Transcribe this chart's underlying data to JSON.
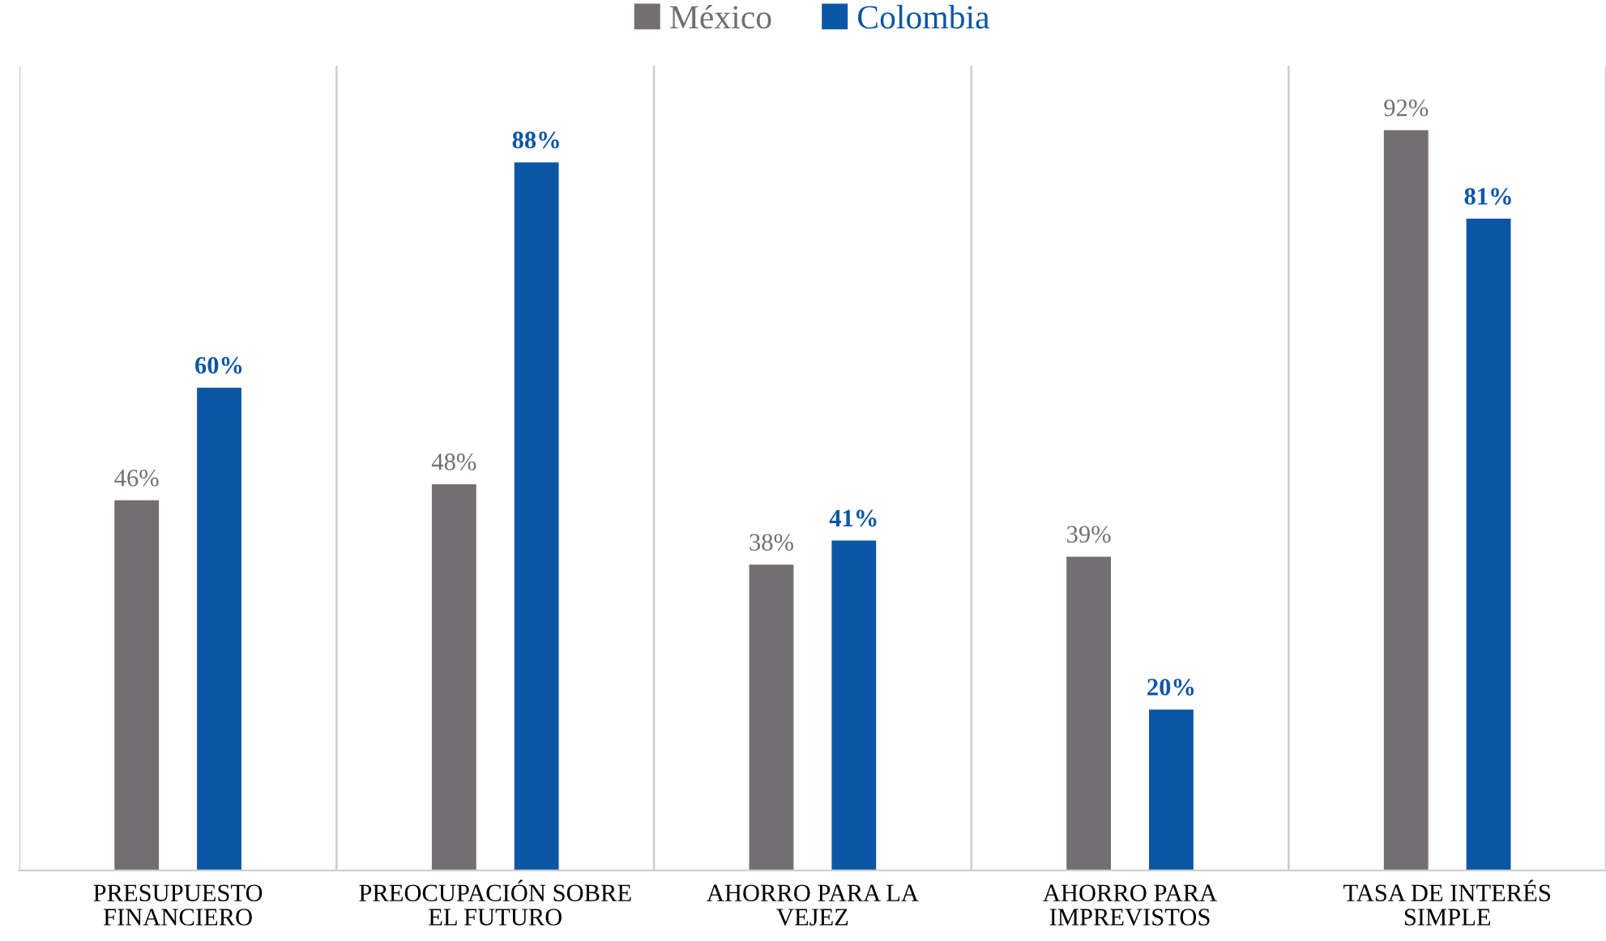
{
  "chart_data": {
    "type": "bar",
    "categories": [
      "PRESUPUESTO\nFINANCIERO",
      "PREOCUPACIÓN SOBRE\nEL FUTURO",
      "AHORRO PARA LA\nVEJEZ",
      "AHORRO PARA\nIMPREVISTOS",
      "TASA DE INTERÉS\nSIMPLE"
    ],
    "series": [
      {
        "name": "México",
        "color": "#726e71",
        "values": [
          46,
          48,
          38,
          39,
          92
        ],
        "value_labels": [
          "46%",
          "48%",
          "38%",
          "39%",
          "92%"
        ]
      },
      {
        "name": "Colombia",
        "color": "#0c56a6",
        "values": [
          60,
          88,
          41,
          20,
          81
        ],
        "value_labels": [
          "60%",
          "88%",
          "41%",
          "20%",
          "81%"
        ]
      }
    ],
    "relative": false,
    "ylim": [
      0,
      100
    ],
    "tick_labels": "x",
    "grid": "x",
    "legend": "top"
  }
}
